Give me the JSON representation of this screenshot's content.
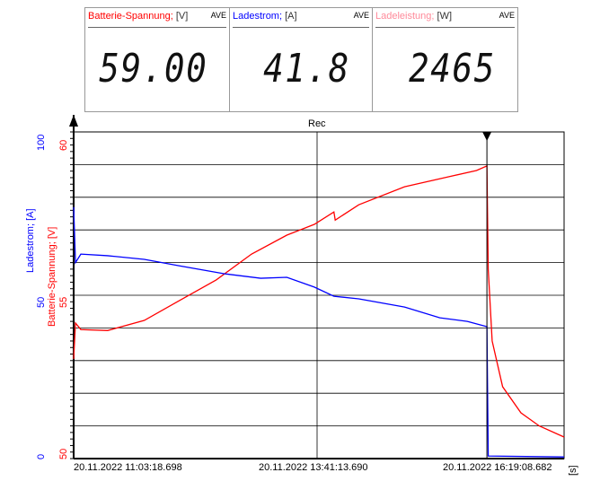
{
  "meters": [
    {
      "label": "Batterie-Spannung;",
      "unit": "[V]",
      "mode": "AVE",
      "value": "59.00",
      "color": "#ff0000"
    },
    {
      "label": "Ladestrom;",
      "unit": "[A]",
      "mode": "AVE",
      "value": "41.8",
      "color": "#0000ff"
    },
    {
      "label": "Ladeleistung;",
      "unit": "[W]",
      "mode": "AVE",
      "value": "2465",
      "color": "#ff8a9a"
    }
  ],
  "chart_data": {
    "type": "line",
    "title": "Rec",
    "xlabel": "[s]",
    "x_ticks": [
      "20.11.2022 11:03:18.698",
      "20.11.2022 13:41:13.690",
      "20.11.2022 16:19:08.682"
    ],
    "xlim": [
      0,
      375
    ],
    "cursor_x": 316,
    "axes": [
      {
        "name": "Batterie-Spannung; [V]",
        "color": "#ff0000",
        "ylim": [
          50,
          60
        ],
        "ticks": [
          "60",
          "55",
          "50"
        ]
      },
      {
        "name": "Ladestrom; [A]",
        "color": "#0000ff",
        "ylim": [
          0,
          100
        ],
        "ticks": [
          "100",
          "50",
          "0"
        ]
      }
    ],
    "series": [
      {
        "name": "Batterie-Spannung",
        "axis": 0,
        "color": "#ff0000",
        "x": [
          0,
          1.4,
          5.5,
          26,
          54,
          81,
          109,
          136,
          163,
          184,
          199,
          200,
          218,
          253,
          287,
          308,
          316,
          317,
          320,
          328,
          342,
          356,
          375
        ],
        "y": [
          53.05,
          54.15,
          53.95,
          53.92,
          54.23,
          54.84,
          55.47,
          56.26,
          56.84,
          57.17,
          57.55,
          57.3,
          57.77,
          58.32,
          58.63,
          58.82,
          58.96,
          55.8,
          53.6,
          52.2,
          51.4,
          51.0,
          50.66
        ]
      },
      {
        "name": "Ladestrom",
        "axis": 1,
        "color": "#0000ff",
        "x": [
          0,
          1.4,
          5.5,
          26,
          54,
          81,
          115,
          143,
          163,
          184,
          199,
          218,
          253,
          280,
          301,
          316,
          317,
          375
        ],
        "y": [
          77,
          60,
          62.6,
          62.1,
          61,
          59,
          56.6,
          55.2,
          55.5,
          52.5,
          49.7,
          48.9,
          46.4,
          43.1,
          42,
          40.4,
          0.8,
          0.5
        ]
      }
    ]
  }
}
